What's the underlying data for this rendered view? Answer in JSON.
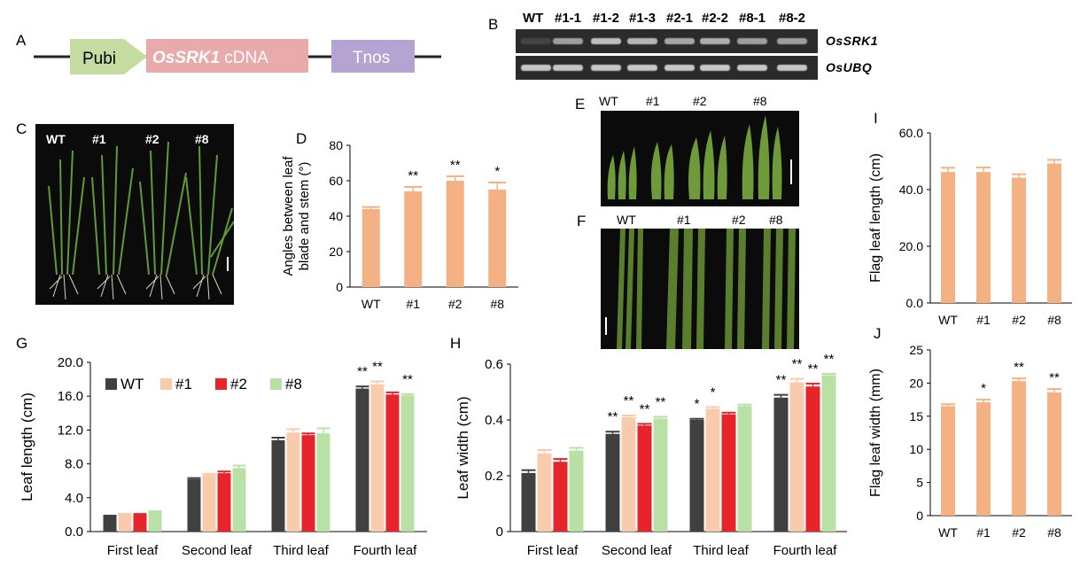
{
  "panels": {
    "A": "A",
    "B": "B",
    "C": "C",
    "D": "D",
    "E": "E",
    "F": "F",
    "G": "G",
    "H": "H",
    "I": "I",
    "J": "J"
  },
  "construct": {
    "promoter": "Pubi",
    "gene_italic": "OsSRK1",
    "gene_suffix": " cDNA",
    "terminator": "Tnos",
    "colors": {
      "promoter": "#c5dca0",
      "gene": "#e8aaaa",
      "terminator": "#b4a3d3"
    }
  },
  "gel": {
    "lanes": [
      "WT",
      "#1-1",
      "#1-2",
      "#1-3",
      "#2-1",
      "#2-2",
      "#8-1",
      "#8-2"
    ],
    "genes": [
      "OsSRK1",
      "OsUBQ"
    ]
  },
  "photos": {
    "C_labels": [
      "WT",
      "#1",
      "#2",
      "#8"
    ],
    "E_labels": [
      "WT",
      "#1",
      "#2",
      "#8"
    ],
    "F_labels": [
      "WT",
      "#1",
      "#2",
      "#8"
    ]
  },
  "colors": {
    "orange": "#f4b183",
    "dark": "#404040",
    "red": "#e8242b",
    "green": "#b9e0a5",
    "peach": "#f8cbad"
  },
  "chart_data": [
    {
      "id": "D",
      "type": "bar",
      "categories": [
        "WT",
        "#1",
        "#2",
        "#8"
      ],
      "values": [
        44,
        54,
        60,
        55
      ],
      "errors": [
        1.2,
        2.5,
        2.5,
        4
      ],
      "significance": [
        "",
        "**",
        "**",
        "*"
      ],
      "ylabel_line1": "Angles between leaf",
      "ylabel_line2": "blade and stem (°)",
      "ylim": [
        0,
        80
      ],
      "yticks": [
        "0",
        "20",
        "40",
        "60",
        "80"
      ]
    },
    {
      "id": "I",
      "type": "bar",
      "categories": [
        "WT",
        "#1",
        "#2",
        "#8"
      ],
      "values": [
        46.2,
        46.2,
        44.2,
        49.2
      ],
      "errors": [
        1.5,
        1.6,
        1.2,
        1.3
      ],
      "significance": [
        "",
        "",
        "",
        ""
      ],
      "ylabel": "Flag leaf length (cm)",
      "ylim": [
        0,
        60
      ],
      "yticks": [
        "0.0",
        "20.0",
        "40.0",
        "60.0"
      ]
    },
    {
      "id": "J",
      "type": "bar",
      "categories": [
        "WT",
        "#1",
        "#2",
        "#8"
      ],
      "values": [
        16.5,
        17.1,
        20.3,
        18.6
      ],
      "errors": [
        0.3,
        0.4,
        0.4,
        0.5
      ],
      "significance": [
        "",
        "*",
        "**",
        "**"
      ],
      "ylabel": "Flag leaf width (mm)",
      "ylim": [
        0,
        25
      ],
      "yticks": [
        "0",
        "5",
        "10",
        "15",
        "20",
        "25"
      ]
    },
    {
      "id": "G",
      "type": "bar",
      "categories": [
        "First leaf",
        "Second leaf",
        "Third leaf",
        "Fourth leaf"
      ],
      "series": [
        {
          "name": "WT",
          "values": [
            1.8,
            6.2,
            10.8,
            16.9
          ],
          "errors": [
            0.08,
            0.12,
            0.3,
            0.25
          ]
        },
        {
          "name": "#1",
          "values": [
            2.0,
            6.7,
            11.7,
            17.4
          ],
          "errors": [
            0.08,
            0.12,
            0.4,
            0.35
          ]
        },
        {
          "name": "#2",
          "values": [
            2.0,
            6.9,
            11.4,
            16.2
          ],
          "errors": [
            0.08,
            0.2,
            0.2,
            0.25
          ]
        },
        {
          "name": "#8",
          "values": [
            2.3,
            7.5,
            11.6,
            16.1
          ],
          "errors": [
            0.1,
            0.3,
            0.6,
            0.15
          ]
        }
      ],
      "significance": [
        [
          "",
          "",
          "",
          "**"
        ],
        [
          "",
          "",
          "",
          "**"
        ],
        [
          "",
          "",
          "",
          ""
        ],
        [
          "",
          "",
          "",
          "**"
        ]
      ],
      "ylabel": "Leaf length (cm)",
      "ylim": [
        0,
        20
      ],
      "yticks": [
        "0.0",
        "4.0",
        "8.0",
        "12.0",
        "16.0",
        "20.0"
      ],
      "legend_placement": "top"
    },
    {
      "id": "H",
      "type": "bar",
      "categories": [
        "First leaf",
        "Second leaf",
        "Third leaf",
        "Fourth leaf"
      ],
      "series": [
        {
          "name": "WT",
          "values": [
            0.21,
            0.35,
            0.4,
            0.48
          ],
          "errors": [
            0.01,
            0.008,
            0.004,
            0.01
          ]
        },
        {
          "name": "#1",
          "values": [
            0.28,
            0.41,
            0.44,
            0.535
          ],
          "errors": [
            0.012,
            0.006,
            0.006,
            0.012
          ]
        },
        {
          "name": "#2",
          "values": [
            0.25,
            0.38,
            0.42,
            0.52
          ],
          "errors": [
            0.01,
            0.006,
            0.006,
            0.01
          ]
        },
        {
          "name": "#8",
          "values": [
            0.29,
            0.405,
            0.45,
            0.56
          ],
          "errors": [
            0.01,
            0.006,
            0.005,
            0.005
          ]
        }
      ],
      "significance": [
        [
          "",
          "**",
          "*",
          "**"
        ],
        [
          "",
          "**",
          "*",
          "**"
        ],
        [
          "",
          "**",
          "",
          "**"
        ],
        [
          "",
          "**",
          "",
          "**"
        ]
      ],
      "ylabel": "Leaf width (cm)",
      "ylim": [
        0,
        0.6
      ],
      "yticks": [
        "0",
        "0.2",
        "0.4",
        "0.6"
      ]
    }
  ]
}
